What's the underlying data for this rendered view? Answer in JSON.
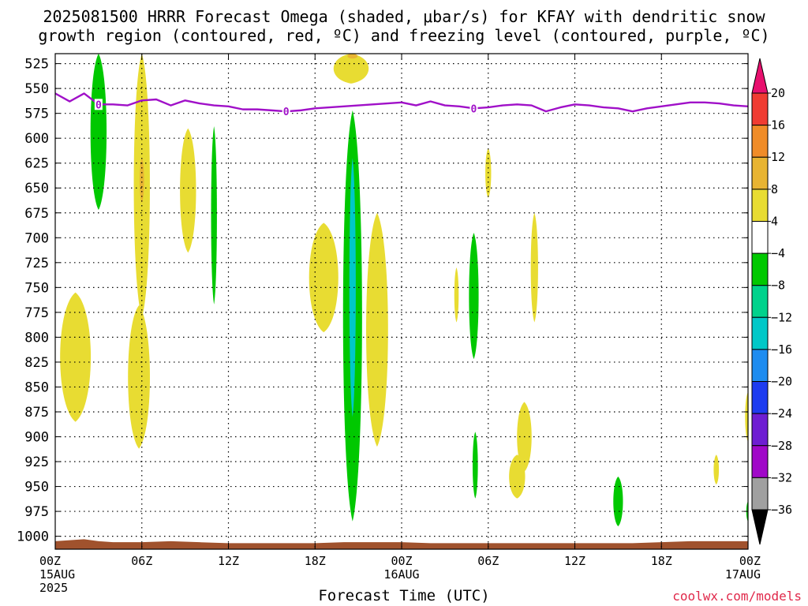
{
  "title_line1": "2025081500 HRRR Forecast Omega (shaded, μbar/s) for KFAY with dendritic snow",
  "title_line2": "growth region (contoured, red, ºC) and freezing level (contoured, purple, ºC)",
  "credit": "coolwx.com/models",
  "chart_data": {
    "type": "heatmap",
    "xlabel": "Forecast Time (UTC)",
    "ylabel": "",
    "xlim": [
      0,
      48
    ],
    "ylim": [
      1013,
      515
    ],
    "x_ticks": [
      {
        "x": 0,
        "label": "00Z",
        "sub": [
          "15AUG",
          "2025"
        ]
      },
      {
        "x": 6,
        "label": "06Z",
        "sub": []
      },
      {
        "x": 12,
        "label": "12Z",
        "sub": []
      },
      {
        "x": 18,
        "label": "18Z",
        "sub": []
      },
      {
        "x": 24,
        "label": "00Z",
        "sub": [
          "16AUG"
        ]
      },
      {
        "x": 30,
        "label": "06Z",
        "sub": []
      },
      {
        "x": 36,
        "label": "12Z",
        "sub": []
      },
      {
        "x": 42,
        "label": "18Z",
        "sub": []
      },
      {
        "x": 48,
        "label": "00Z",
        "sub": [
          "17AUG"
        ]
      }
    ],
    "y_ticks": [
      525,
      550,
      575,
      600,
      625,
      650,
      675,
      700,
      725,
      750,
      775,
      800,
      825,
      850,
      875,
      900,
      925,
      950,
      975,
      1000
    ],
    "grid": true,
    "colorbar": {
      "levels": [
        "20",
        "16",
        "12",
        "8",
        "4",
        "−4",
        "−8",
        "−12",
        "−16",
        "−20",
        "−24",
        "−28",
        "−32",
        "−36"
      ],
      "colors": [
        "#e8106e",
        "#f03c32",
        "#f08c28",
        "#e8b432",
        "#e8dc32",
        "#ffffff",
        "#00c800",
        "#00d28c",
        "#00c8c8",
        "#1e8cf0",
        "#1e3cf0",
        "#6e1ed2",
        "#a008c8",
        "#a0a0a0",
        "#000000"
      ]
    },
    "freezing_level": {
      "color": "#a010c8",
      "contour_label": "0",
      "label_x": [
        3,
        16,
        29
      ],
      "x": [
        0,
        1,
        2,
        3,
        4,
        5,
        6,
        7,
        8,
        9,
        10,
        11,
        12,
        13,
        14,
        15,
        16,
        17,
        18,
        19,
        20,
        21,
        22,
        23,
        24,
        25,
        26,
        27,
        28,
        29,
        30,
        31,
        32,
        33,
        34,
        35,
        36,
        37,
        38,
        39,
        40,
        41,
        42,
        43,
        44,
        45,
        46,
        47,
        48
      ],
      "p": [
        555,
        563,
        555,
        566,
        566,
        567,
        562,
        561,
        567,
        562,
        565,
        567,
        568,
        571,
        571,
        572,
        573,
        572,
        570,
        569,
        568,
        567,
        566,
        565,
        564,
        567,
        563,
        567,
        568,
        570,
        569,
        567,
        566,
        567,
        573,
        569,
        566,
        567,
        569,
        570,
        573,
        570,
        568,
        566,
        564,
        564,
        565,
        567,
        568
      ]
    },
    "omega_regions": [
      {
        "value": -6,
        "x": 3.0,
        "p_top": 515,
        "p_bot": 672,
        "half_width": 0.55,
        "shape": "lens"
      },
      {
        "value": 5,
        "x": 6.0,
        "p_top": 515,
        "p_bot": 780,
        "half_width": 0.55,
        "shape": "lens"
      },
      {
        "value": 9,
        "x": 6.0,
        "p_top": 620,
        "p_bot": 665,
        "half_width": 0.15,
        "shape": "lens"
      },
      {
        "value": 5,
        "x": 5.8,
        "p_top": 768,
        "p_bot": 912,
        "half_width": 0.75,
        "shape": "lens"
      },
      {
        "value": 5,
        "x": 1.4,
        "p_top": 755,
        "p_bot": 885,
        "half_width": 1.05,
        "shape": "lens"
      },
      {
        "value": 5,
        "x": 9.2,
        "p_top": 590,
        "p_bot": 715,
        "half_width": 0.55,
        "shape": "lens"
      },
      {
        "value": -6,
        "x": 11.0,
        "p_top": 588,
        "p_bot": 767,
        "half_width": 0.2,
        "shape": "lens"
      },
      {
        "value": 5,
        "x": 20.5,
        "p_top": 515,
        "p_bot": 545,
        "half_width": 1.2,
        "shape": "lens"
      },
      {
        "value": 9,
        "x": 20.6,
        "p_top": 515,
        "p_bot": 520,
        "half_width": 0.35,
        "shape": "lens"
      },
      {
        "value": 5,
        "x": 18.6,
        "p_top": 685,
        "p_bot": 795,
        "half_width": 1.0,
        "shape": "lens"
      },
      {
        "value": -6,
        "x": 20.6,
        "p_top": 572,
        "p_bot": 985,
        "half_width": 0.65,
        "shape": "lens"
      },
      {
        "value": -14,
        "x": 20.6,
        "p_top": 620,
        "p_bot": 880,
        "half_width": 0.22,
        "shape": "lens"
      },
      {
        "value": 5,
        "x": 22.3,
        "p_top": 675,
        "p_bot": 910,
        "half_width": 0.75,
        "shape": "lens"
      },
      {
        "value": 5,
        "x": 27.8,
        "p_top": 730,
        "p_bot": 785,
        "half_width": 0.15,
        "shape": "lens"
      },
      {
        "value": -6,
        "x": 29.0,
        "p_top": 695,
        "p_bot": 822,
        "half_width": 0.33,
        "shape": "lens"
      },
      {
        "value": 5,
        "x": 30.0,
        "p_top": 610,
        "p_bot": 660,
        "half_width": 0.2,
        "shape": "lens"
      },
      {
        "value": 5,
        "x": 33.2,
        "p_top": 675,
        "p_bot": 785,
        "half_width": 0.25,
        "shape": "lens"
      },
      {
        "value": 5,
        "x": 32.5,
        "p_top": 865,
        "p_bot": 935,
        "half_width": 0.5,
        "shape": "lens"
      },
      {
        "value": 5,
        "x": 32.0,
        "p_top": 918,
        "p_bot": 962,
        "half_width": 0.55,
        "shape": "lens"
      },
      {
        "value": -6,
        "x": 29.1,
        "p_top": 895,
        "p_bot": 962,
        "half_width": 0.18,
        "shape": "lens"
      },
      {
        "value": -6,
        "x": 39.0,
        "p_top": 940,
        "p_bot": 990,
        "half_width": 0.33,
        "shape": "lens"
      },
      {
        "value": 5,
        "x": 45.8,
        "p_top": 918,
        "p_bot": 948,
        "half_width": 0.18,
        "shape": "lens"
      },
      {
        "value": 5,
        "x": 48.0,
        "p_top": 855,
        "p_bot": 905,
        "half_width": 0.2,
        "shape": "lens"
      },
      {
        "value": -6,
        "x": 48.0,
        "p_top": 965,
        "p_bot": 985,
        "half_width": 0.12,
        "shape": "lens"
      }
    ],
    "terrain": {
      "color": "#a0522d",
      "x": [
        0,
        1,
        2,
        3,
        4,
        5,
        6,
        8,
        10,
        12,
        14,
        16,
        18,
        20,
        22,
        24,
        26,
        28,
        30,
        32,
        34,
        36,
        38,
        40,
        42,
        44,
        46,
        48
      ],
      "p": [
        1005,
        1004,
        1003,
        1005,
        1006,
        1006,
        1006,
        1005,
        1006,
        1007,
        1007,
        1007,
        1007,
        1006,
        1006,
        1006,
        1007,
        1007,
        1007,
        1007,
        1007,
        1007,
        1007,
        1007,
        1006,
        1005,
        1005,
        1005
      ]
    }
  }
}
